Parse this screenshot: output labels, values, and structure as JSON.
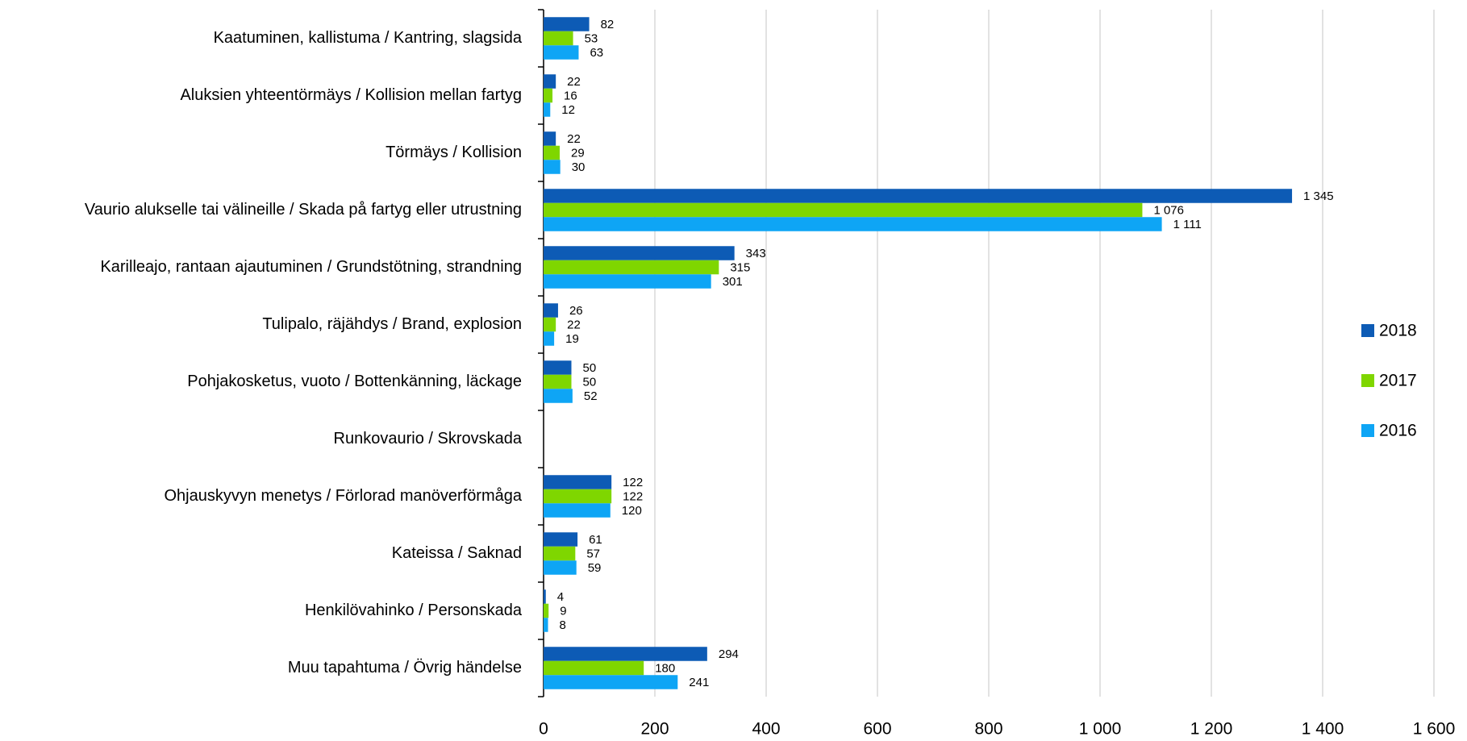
{
  "chart_data": {
    "type": "bar",
    "orientation": "horizontal",
    "categories": [
      "Kaatuminen, kallistuma / Kantring, slagsida",
      "Aluksien yhteentörmäys / Kollision mellan fartyg",
      "Törmäys / Kollision",
      "Vaurio alukselle tai välineille / Skada på fartyg eller utrustning",
      "Karilleajo, rantaan ajautuminen / Grundstötning, strandning",
      "Tulipalo, räjähdys / Brand, explosion",
      "Pohjakosketus, vuoto / Bottenkänning, läckage",
      "Runkovaurio / Skrovskada",
      "Ohjauskyvyn menetys / Förlorad manöverförmåga",
      "Kateissa / Saknad",
      "Henkilövahinko / Personskada",
      "Muu tapahtuma / Övrig händelse"
    ],
    "series": [
      {
        "name": "2018",
        "color": "#0d5bb5",
        "values": [
          82,
          22,
          22,
          1345,
          343,
          26,
          50,
          null,
          122,
          61,
          4,
          294
        ],
        "value_labels": [
          "82",
          "22",
          "22",
          "1 345",
          "343",
          "26",
          "50",
          null,
          "122",
          "61",
          "4",
          "294"
        ]
      },
      {
        "name": "2017",
        "color": "#7fd600",
        "values": [
          53,
          16,
          29,
          1076,
          315,
          22,
          50,
          null,
          122,
          57,
          9,
          180
        ],
        "value_labels": [
          "53",
          "16",
          "29",
          "1 076",
          "315",
          "22",
          "50",
          null,
          "122",
          "57",
          "9",
          "180"
        ]
      },
      {
        "name": "2016",
        "color": "#0ea5f5",
        "values": [
          63,
          12,
          30,
          1111,
          301,
          19,
          52,
          null,
          120,
          59,
          8,
          241
        ],
        "value_labels": [
          "63",
          "12",
          "30",
          "1 111",
          "301",
          "19",
          "52",
          null,
          "120",
          "59",
          "8",
          "241"
        ]
      }
    ],
    "xlim": [
      0,
      1600
    ],
    "xticks": [
      0,
      200,
      400,
      600,
      800,
      {
        "value": 1000,
        "label": "1 000"
      },
      {
        "value": 1200,
        "label": "1 200"
      },
      {
        "value": 1400,
        "label": "1 400"
      },
      {
        "value": 1600,
        "label": "1 600"
      }
    ],
    "grid": true,
    "legend": "right"
  }
}
